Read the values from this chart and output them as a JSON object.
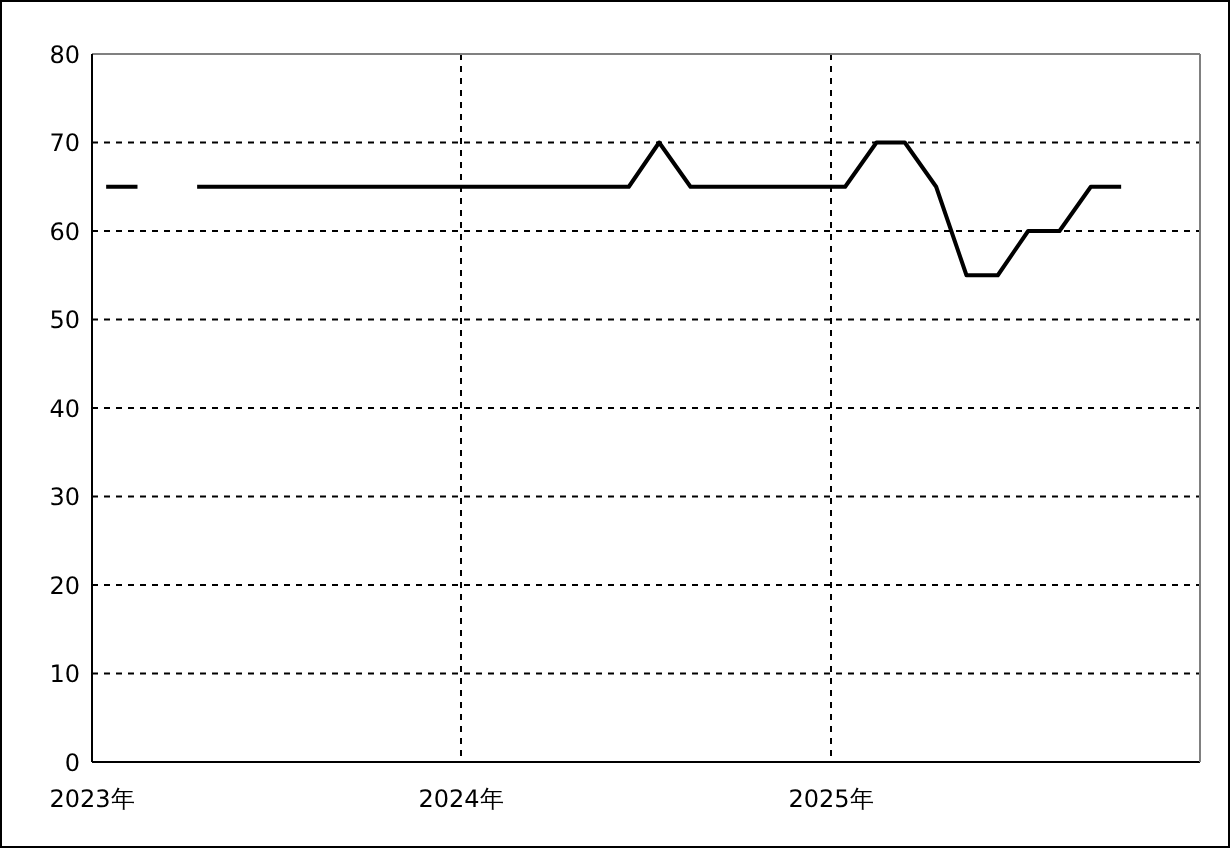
{
  "chart_data": {
    "type": "line",
    "x": [
      "2023-01-15",
      "2023-02-15",
      "2023-03-15",
      "2023-04-15",
      "2023-05-15",
      "2023-06-15",
      "2023-07-15",
      "2023-08-15",
      "2023-09-15",
      "2023-10-15",
      "2023-11-15",
      "2023-12-15",
      "2024-01-15",
      "2024-02-15",
      "2024-03-15",
      "2024-04-15",
      "2024-05-15",
      "2024-06-15",
      "2024-07-15",
      "2024-08-15",
      "2024-09-15",
      "2024-10-15",
      "2024-11-15",
      "2024-12-15",
      "2025-01-15",
      "2025-02-15",
      "2025-03-15",
      "2025-04-15",
      "2025-05-15",
      "2025-06-15",
      "2025-07-15",
      "2025-08-15",
      "2025-09-15",
      "2025-10-15"
    ],
    "series": [
      {
        "color": "#000000",
        "values": [
          65,
          65,
          null,
          65,
          65,
          65,
          65,
          65,
          65,
          65,
          65,
          65,
          65,
          65,
          65,
          65,
          65,
          65,
          70,
          65,
          65,
          65,
          65,
          65,
          65,
          70,
          70,
          65,
          55,
          55,
          60,
          60,
          65,
          65
        ]
      }
    ],
    "xlim": [
      "2023",
      "2026"
    ],
    "xticks": [
      {
        "value": "2023",
        "label": "2023年"
      },
      {
        "value": "2024",
        "label": "2024年"
      },
      {
        "value": "2025",
        "label": "2025年"
      }
    ],
    "ylim": [
      0,
      80
    ],
    "yticks": [
      0,
      10,
      20,
      30,
      40,
      50,
      60,
      70,
      80
    ],
    "grid": true,
    "line_style": "solid"
  }
}
